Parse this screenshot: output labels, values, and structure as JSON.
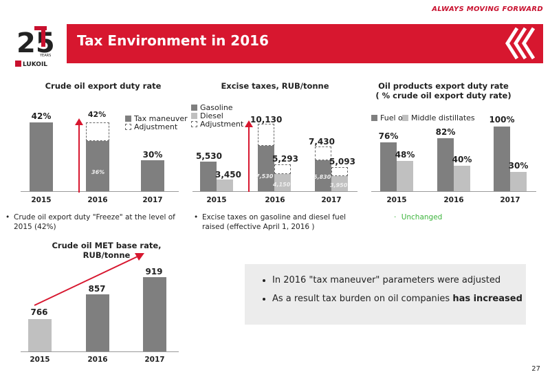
{
  "header": {
    "tagline": "ALWAYS MOVING FORWARD",
    "title": "Tax Environment in 2016",
    "page_number": "27"
  },
  "logo": {
    "years_text": "25",
    "years_label": "YEARS",
    "brand": "LUKOIL"
  },
  "colors": {
    "dark_bar": "#7f7f7f",
    "light_bar": "#c0c0c0",
    "accent": "#d7172f"
  },
  "crude_export": {
    "title": "Crude oil export duty rate",
    "categories": [
      "2015",
      "2016",
      "2017"
    ],
    "values": [
      "42%",
      "36%",
      "30%"
    ],
    "top_label_2016": "42%",
    "legend": {
      "tax_maneuver": "Tax maneuver",
      "adjustment": "Adjustment"
    },
    "note": "Crude oil export duty \"Freeze\" at the level of 2015 (42%)"
  },
  "excise": {
    "title": "Excise taxes, RUB/tonne",
    "categories": [
      "2015",
      "2016",
      "2017"
    ],
    "legend": {
      "gasoline": "Gasoline",
      "diesel": "Diesel",
      "adjustment": "Adjustment"
    },
    "gasoline_labels": [
      "5,530",
      "10,130",
      "7,430"
    ],
    "diesel_labels": [
      "3,450",
      "5,293",
      "5,093"
    ],
    "gasoline_inner": [
      "7,530",
      "5,830"
    ],
    "diesel_inner": [
      "4,150",
      "3,950"
    ],
    "note": "Excise taxes on gasoline and diesel fuel raised (effective April 1, 2016 )"
  },
  "products_export": {
    "title_line1": "Oil products export duty rate",
    "title_line2": "( % crude oil export duty rate)",
    "categories": [
      "2015",
      "2016",
      "2017"
    ],
    "legend": {
      "fuel_oil": "Fuel oil",
      "middle": "Middle distillates"
    },
    "fuel_labels": [
      "76%",
      "82%",
      "100%"
    ],
    "middle_labels": [
      "48%",
      "40%",
      "30%"
    ],
    "note": "Unchanged"
  },
  "met": {
    "title": "Crude oil MET base rate, RUB/tonne",
    "categories": [
      "2015",
      "2016",
      "2017"
    ],
    "labels": [
      "766",
      "857",
      "919"
    ]
  },
  "info": {
    "bullet1": "In 2016 \"tax maneuver\" parameters were adjusted",
    "bullet2_prefix": "As a result tax burden on oil companies ",
    "bullet2_bold": "has increased"
  },
  "chart_data": [
    {
      "type": "bar",
      "title": "Crude oil export duty rate",
      "categories": [
        "2015",
        "2016",
        "2017"
      ],
      "series": [
        {
          "name": "Tax maneuver",
          "values": [
            42,
            36,
            30
          ]
        },
        {
          "name": "Adjustment",
          "values": [
            0,
            6,
            0
          ]
        }
      ]
    },
    {
      "type": "bar",
      "title": "Excise taxes, RUB/tonne",
      "categories": [
        "2015",
        "2016",
        "2017"
      ],
      "series": [
        {
          "name": "Gasoline",
          "values": [
            5530,
            7530,
            5830
          ]
        },
        {
          "name": "Diesel",
          "values": [
            3450,
            4150,
            3950
          ]
        }
      ]
    },
    {
      "type": "bar",
      "title": "Oil products export duty rate ( % crude oil export duty rate)",
      "categories": [
        "2015",
        "2016",
        "2017"
      ],
      "series": [
        {
          "name": "Fuel oil",
          "values": [
            76,
            82,
            100
          ]
        },
        {
          "name": "Middle distillates",
          "values": [
            48,
            40,
            30
          ]
        }
      ]
    },
    {
      "type": "bar",
      "title": "Crude oil MET base rate, RUB/tonne",
      "categories": [
        "2015",
        "2016",
        "2017"
      ],
      "values": [
        766,
        857,
        919
      ]
    }
  ]
}
